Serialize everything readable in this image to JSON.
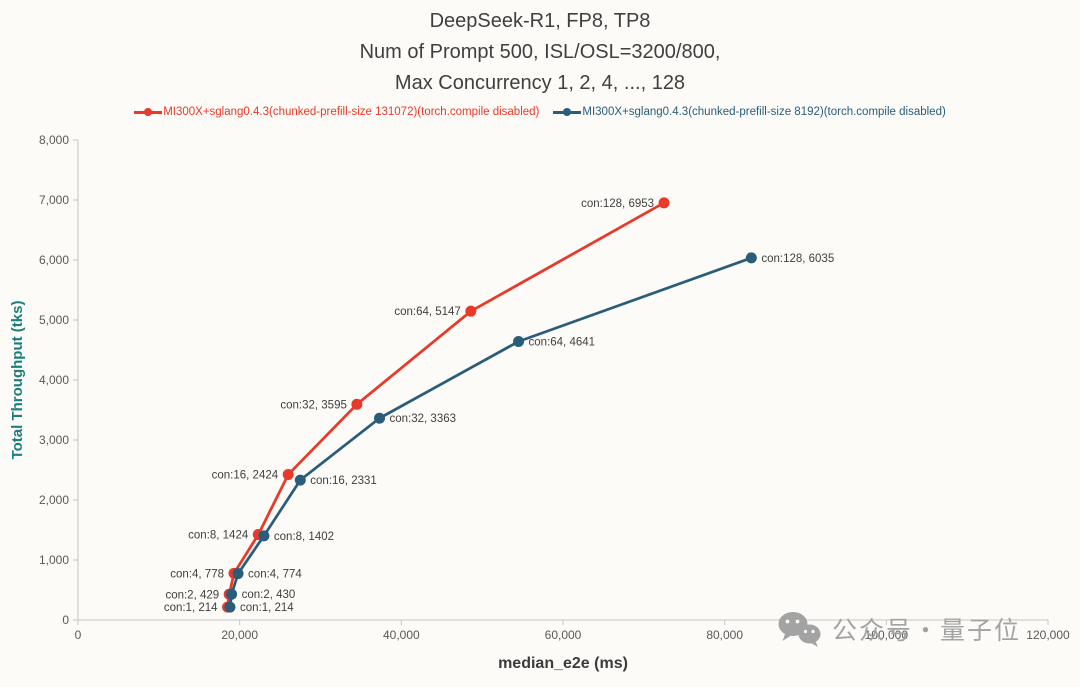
{
  "title": {
    "line1": "DeepSeek-R1, FP8, TP8",
    "line2": "Num of Prompt 500, ISL/OSL=3200/800,",
    "line3": "Max Concurrency 1, 2, 4, ..., 128"
  },
  "legend": [
    {
      "label": "MI300X+sglang0.4.3(chunked-prefill-size 131072)(torch.compile disabled)",
      "color": "#e8392a"
    },
    {
      "label": "MI300X+sglang0.4.3(chunked-prefill-size 8192)(torch.compile disabled)",
      "color": "#2a5d7a"
    }
  ],
  "watermark": {
    "text": "公众号・量子位"
  },
  "chart_data": {
    "type": "line",
    "title": "DeepSeek-R1, FP8, TP8 — Num of Prompt 500, ISL/OSL=3200/800, Max Concurrency 1, 2, 4, ..., 128",
    "xlabel": "median_e2e (ms)",
    "ylabel": "Total Throughput (tks)",
    "xlim": [
      0,
      120000
    ],
    "ylim": [
      0,
      8000
    ],
    "x_ticks": [
      0,
      20000,
      40000,
      60000,
      80000,
      100000,
      120000
    ],
    "y_ticks": [
      0,
      1000,
      2000,
      3000,
      4000,
      5000,
      6000,
      7000,
      8000
    ],
    "grid": false,
    "legend_position": "top",
    "marker": "circle",
    "series": [
      {
        "name": "MI300X+sglang0.4.3(chunked-prefill-size 131072)(torch.compile disabled)",
        "color": "#e8392a",
        "label_side": "left",
        "points": [
          {
            "concurrency": 1,
            "x": 18500,
            "y": 214,
            "label": "con:1, 214"
          },
          {
            "concurrency": 2,
            "x": 18700,
            "y": 429,
            "label": "con:2, 429"
          },
          {
            "concurrency": 4,
            "x": 19300,
            "y": 778,
            "label": "con:4, 778"
          },
          {
            "concurrency": 8,
            "x": 22300,
            "y": 1424,
            "label": "con:8, 1424"
          },
          {
            "concurrency": 16,
            "x": 26000,
            "y": 2424,
            "label": "con:16, 2424"
          },
          {
            "concurrency": 32,
            "x": 34500,
            "y": 3595,
            "label": "con:32, 3595"
          },
          {
            "concurrency": 64,
            "x": 48600,
            "y": 5147,
            "label": "con:64, 5147"
          },
          {
            "concurrency": 128,
            "x": 72500,
            "y": 6953,
            "label": "con:128, 6953"
          }
        ]
      },
      {
        "name": "MI300X+sglang0.4.3(chunked-prefill-size 8192)(torch.compile disabled)",
        "color": "#2a5d7a",
        "label_side": "right",
        "points": [
          {
            "concurrency": 1,
            "x": 18800,
            "y": 214,
            "label": "con:1, 214"
          },
          {
            "concurrency": 2,
            "x": 19000,
            "y": 430,
            "label": "con:2, 430"
          },
          {
            "concurrency": 4,
            "x": 19800,
            "y": 774,
            "label": "con:4, 774"
          },
          {
            "concurrency": 8,
            "x": 23000,
            "y": 1402,
            "label": "con:8, 1402"
          },
          {
            "concurrency": 16,
            "x": 27500,
            "y": 2331,
            "label": "con:16, 2331"
          },
          {
            "concurrency": 32,
            "x": 37300,
            "y": 3363,
            "label": "con:32, 3363"
          },
          {
            "concurrency": 64,
            "x": 54500,
            "y": 4641,
            "label": "con:64, 4641"
          },
          {
            "concurrency": 128,
            "x": 83300,
            "y": 6035,
            "label": "con:128, 6035"
          }
        ]
      }
    ]
  }
}
